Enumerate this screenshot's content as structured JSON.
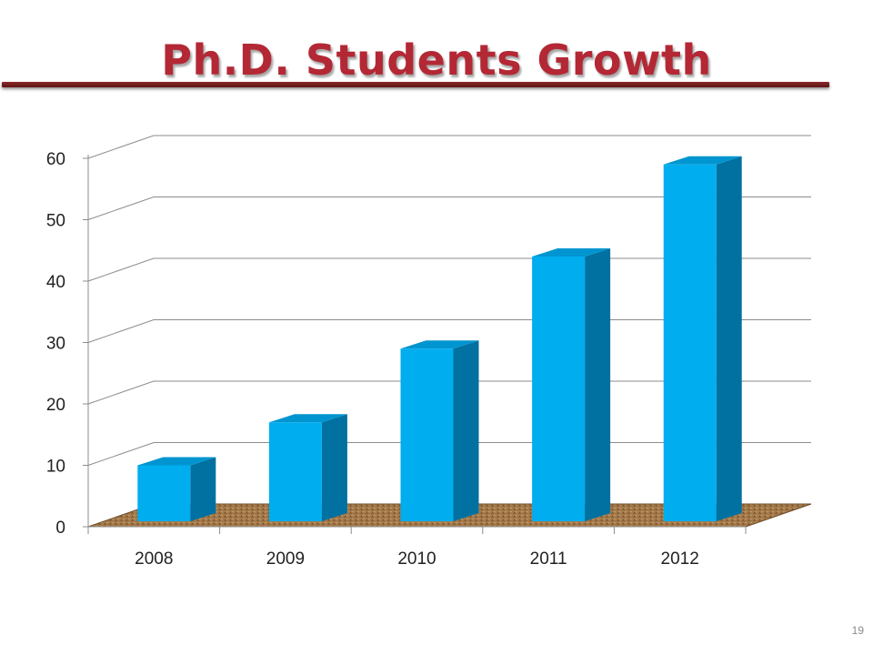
{
  "slide": {
    "title": "Ph.D. Students Growth",
    "page_number": "19"
  },
  "colors": {
    "title": "#b32834",
    "rule": "#6e1c1c",
    "bar_front": "#00adee",
    "bar_side": "#0071a0",
    "bar_top": "#0095d0",
    "floor": "#a0784c",
    "gridline": "#8c8c8c"
  },
  "chart_data": {
    "type": "bar",
    "style": "3d-column",
    "title": "",
    "xlabel": "",
    "ylabel": "",
    "categories": [
      "2008",
      "2009",
      "2010",
      "2011",
      "2012"
    ],
    "values": [
      10,
      17,
      29,
      44,
      59
    ],
    "ylim": [
      0,
      60
    ],
    "yticks": [
      "0",
      "10",
      "20",
      "30",
      "40",
      "50",
      "60"
    ],
    "grid": true,
    "legend": "none"
  }
}
